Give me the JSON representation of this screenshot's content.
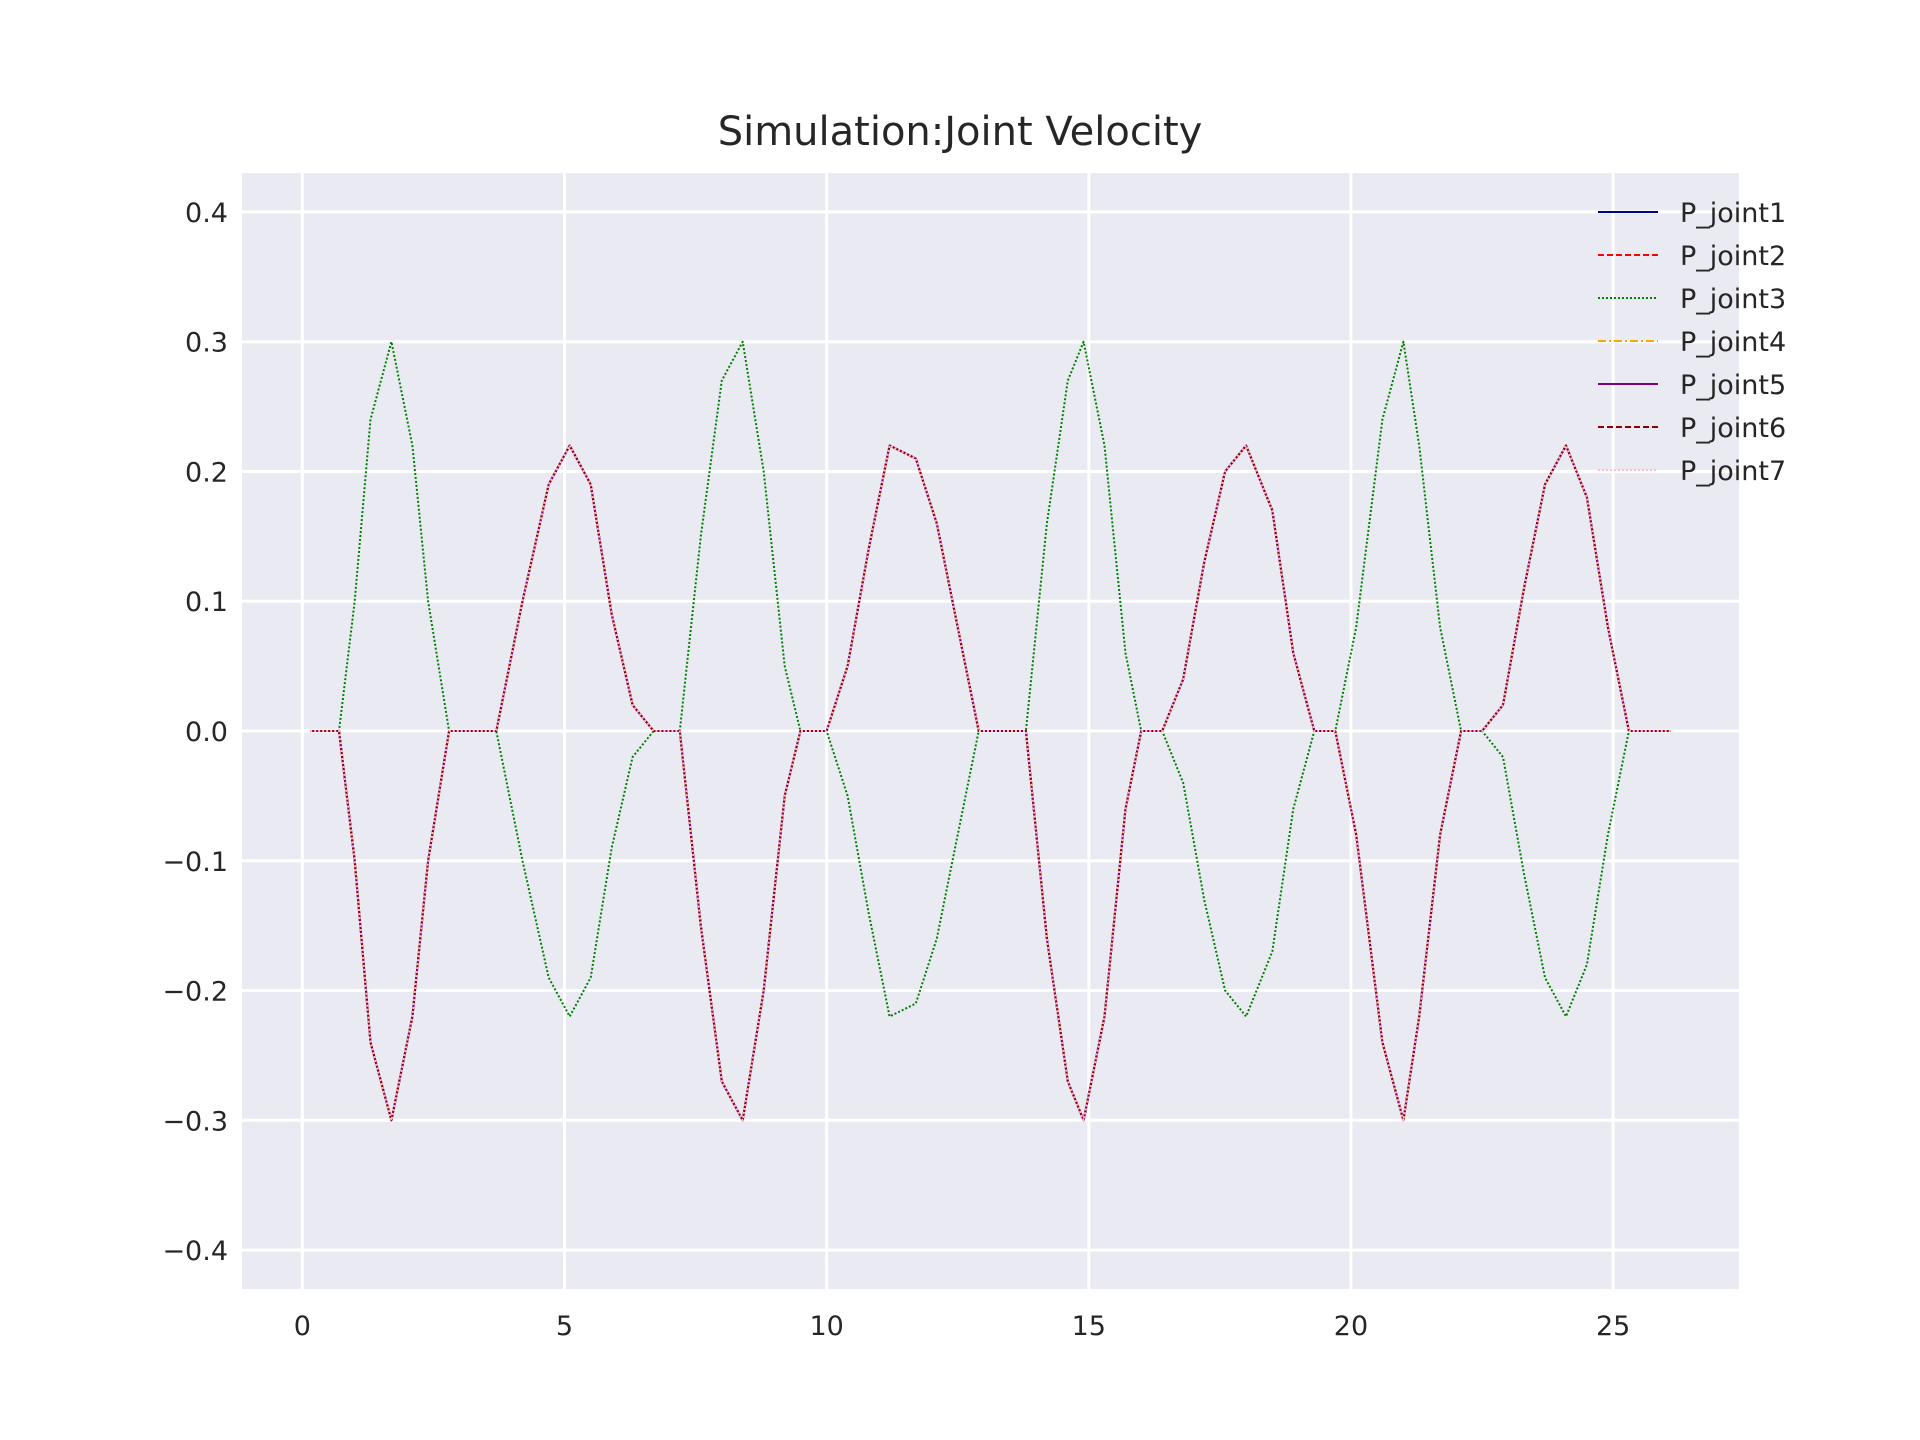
{
  "chart_data": {
    "type": "line",
    "title": "Simulation:Joint Velocity",
    "xlabel": "",
    "ylabel": "",
    "xlim": [
      -1.15,
      27.4
    ],
    "ylim": [
      -0.43,
      0.43
    ],
    "xticks": [
      0,
      5,
      10,
      15,
      20,
      25
    ],
    "yticks": [
      0.4,
      0.3,
      0.2,
      0.1,
      0.0,
      -0.1,
      -0.2,
      -0.3,
      -0.4
    ],
    "ytick_labels": [
      "0.4",
      "0.3",
      "0.2",
      "0.1",
      "0.0",
      "−0.1",
      "−0.2",
      "−0.3",
      "−0.4"
    ],
    "grid": true,
    "legend_position": "top-right",
    "background": "#eaeaf2",
    "grid_color": "#ffffff",
    "x": [
      0.15,
      0.5,
      0.7,
      1.0,
      1.3,
      1.7,
      2.1,
      2.4,
      2.8,
      3.2,
      3.7,
      4.2,
      4.7,
      5.1,
      5.5,
      5.9,
      6.3,
      6.7,
      7.2,
      7.6,
      8.0,
      8.4,
      8.8,
      9.2,
      9.5,
      10.0,
      10.4,
      10.8,
      11.2,
      11.7,
      12.1,
      12.5,
      12.9,
      13.3,
      13.8,
      14.2,
      14.6,
      14.9,
      15.3,
      15.7,
      16.0,
      16.4,
      16.8,
      17.2,
      17.6,
      18.0,
      18.5,
      18.9,
      19.3,
      19.7,
      20.1,
      20.6,
      21.0,
      21.3,
      21.7,
      22.1,
      22.5,
      22.9,
      23.3,
      23.7,
      24.1,
      24.5,
      24.9,
      25.3,
      25.7,
      26.1
    ],
    "series": [
      {
        "name": "P_joint1",
        "color": "#00008b",
        "dash": "solid",
        "values": [
          0.0,
          0.0,
          0.0,
          -0.1,
          -0.24,
          -0.3,
          -0.22,
          -0.1,
          0.0,
          0.0,
          0.0,
          0.1,
          0.19,
          0.22,
          0.19,
          0.09,
          0.02,
          0.0,
          0.0,
          -0.15,
          -0.27,
          -0.3,
          -0.2,
          -0.05,
          0.0,
          0.0,
          0.05,
          0.14,
          0.22,
          0.21,
          0.16,
          0.08,
          0.0,
          0.0,
          0.0,
          -0.16,
          -0.27,
          -0.3,
          -0.22,
          -0.06,
          0.0,
          0.0,
          0.04,
          0.13,
          0.2,
          0.22,
          0.17,
          0.06,
          0.0,
          0.0,
          -0.08,
          -0.24,
          -0.3,
          -0.22,
          -0.08,
          0.0,
          0.0,
          0.02,
          0.11,
          0.19,
          0.22,
          0.18,
          0.08,
          0.0,
          0.0,
          0.0
        ]
      },
      {
        "name": "P_joint2",
        "color": "#ff0000",
        "dash": "6,3",
        "values": [
          0.0,
          0.0,
          0.0,
          -0.1,
          -0.24,
          -0.3,
          -0.22,
          -0.1,
          0.0,
          0.0,
          0.0,
          0.1,
          0.19,
          0.22,
          0.19,
          0.09,
          0.02,
          0.0,
          0.0,
          -0.15,
          -0.27,
          -0.3,
          -0.2,
          -0.05,
          0.0,
          0.0,
          0.05,
          0.14,
          0.22,
          0.21,
          0.16,
          0.08,
          0.0,
          0.0,
          0.0,
          -0.16,
          -0.27,
          -0.3,
          -0.22,
          -0.06,
          0.0,
          0.0,
          0.04,
          0.13,
          0.2,
          0.22,
          0.17,
          0.06,
          0.0,
          0.0,
          -0.08,
          -0.24,
          -0.3,
          -0.22,
          -0.08,
          0.0,
          0.0,
          0.02,
          0.11,
          0.19,
          0.22,
          0.18,
          0.08,
          0.0,
          0.0,
          0.0
        ]
      },
      {
        "name": "P_joint3",
        "color": "#008000",
        "dash": "2,2",
        "values": [
          0.0,
          0.0,
          0.0,
          0.1,
          0.24,
          0.3,
          0.22,
          0.1,
          0.0,
          0.0,
          0.0,
          -0.1,
          -0.19,
          -0.22,
          -0.19,
          -0.09,
          -0.02,
          0.0,
          0.0,
          0.15,
          0.27,
          0.3,
          0.2,
          0.05,
          0.0,
          0.0,
          -0.05,
          -0.14,
          -0.22,
          -0.21,
          -0.16,
          -0.08,
          0.0,
          0.0,
          0.0,
          0.16,
          0.27,
          0.3,
          0.22,
          0.06,
          0.0,
          0.0,
          -0.04,
          -0.13,
          -0.2,
          -0.22,
          -0.17,
          -0.06,
          0.0,
          0.0,
          0.08,
          0.24,
          0.3,
          0.22,
          0.08,
          0.0,
          0.0,
          -0.02,
          -0.11,
          -0.19,
          -0.22,
          -0.18,
          -0.08,
          0.0,
          0.0,
          0.0
        ]
      },
      {
        "name": "P_joint4",
        "color": "#ffa500",
        "dash": "8,3,2,3",
        "values": [
          0.0,
          0.0,
          0.0,
          -0.1,
          -0.24,
          -0.3,
          -0.22,
          -0.1,
          0.0,
          0.0,
          0.0,
          0.1,
          0.19,
          0.22,
          0.19,
          0.09,
          0.02,
          0.0,
          0.0,
          -0.15,
          -0.27,
          -0.3,
          -0.2,
          -0.05,
          0.0,
          0.0,
          0.05,
          0.14,
          0.22,
          0.21,
          0.16,
          0.08,
          0.0,
          0.0,
          0.0,
          -0.16,
          -0.27,
          -0.3,
          -0.22,
          -0.06,
          0.0,
          0.0,
          0.04,
          0.13,
          0.2,
          0.22,
          0.17,
          0.06,
          0.0,
          0.0,
          -0.08,
          -0.24,
          -0.3,
          -0.22,
          -0.08,
          0.0,
          0.0,
          0.02,
          0.11,
          0.19,
          0.22,
          0.18,
          0.08,
          0.0,
          0.0,
          0.0
        ]
      },
      {
        "name": "P_joint5",
        "color": "#800080",
        "dash": "solid",
        "values": [
          0.0,
          0.0,
          0.0,
          -0.1,
          -0.24,
          -0.3,
          -0.22,
          -0.1,
          0.0,
          0.0,
          0.0,
          0.1,
          0.19,
          0.22,
          0.19,
          0.09,
          0.02,
          0.0,
          0.0,
          -0.15,
          -0.27,
          -0.3,
          -0.2,
          -0.05,
          0.0,
          0.0,
          0.05,
          0.14,
          0.22,
          0.21,
          0.16,
          0.08,
          0.0,
          0.0,
          0.0,
          -0.16,
          -0.27,
          -0.3,
          -0.22,
          -0.06,
          0.0,
          0.0,
          0.04,
          0.13,
          0.2,
          0.22,
          0.17,
          0.06,
          0.0,
          0.0,
          -0.08,
          -0.24,
          -0.3,
          -0.22,
          -0.08,
          0.0,
          0.0,
          0.02,
          0.11,
          0.19,
          0.22,
          0.18,
          0.08,
          0.0,
          0.0,
          0.0
        ]
      },
      {
        "name": "P_joint6",
        "color": "#8b0000",
        "dash": "6,3",
        "values": [
          0.0,
          0.0,
          0.0,
          -0.1,
          -0.24,
          -0.3,
          -0.22,
          -0.1,
          0.0,
          0.0,
          0.0,
          0.1,
          0.19,
          0.22,
          0.19,
          0.09,
          0.02,
          0.0,
          0.0,
          -0.15,
          -0.27,
          -0.3,
          -0.2,
          -0.05,
          0.0,
          0.0,
          0.05,
          0.14,
          0.22,
          0.21,
          0.16,
          0.08,
          0.0,
          0.0,
          0.0,
          -0.16,
          -0.27,
          -0.3,
          -0.22,
          -0.06,
          0.0,
          0.0,
          0.04,
          0.13,
          0.2,
          0.22,
          0.17,
          0.06,
          0.0,
          0.0,
          -0.08,
          -0.24,
          -0.3,
          -0.22,
          -0.08,
          0.0,
          0.0,
          0.02,
          0.11,
          0.19,
          0.22,
          0.18,
          0.08,
          0.0,
          0.0,
          0.0
        ]
      },
      {
        "name": "P_joint7",
        "color": "#ffc0cb",
        "dash": "2,2",
        "values": [
          0.0,
          0.0,
          0.0,
          -0.1,
          -0.24,
          -0.3,
          -0.22,
          -0.1,
          0.0,
          0.0,
          0.0,
          0.1,
          0.19,
          0.22,
          0.19,
          0.09,
          0.02,
          0.0,
          0.0,
          -0.15,
          -0.27,
          -0.3,
          -0.2,
          -0.05,
          0.0,
          0.0,
          0.05,
          0.14,
          0.22,
          0.21,
          0.16,
          0.08,
          0.0,
          0.0,
          0.0,
          -0.16,
          -0.27,
          -0.3,
          -0.22,
          -0.06,
          0.0,
          0.0,
          0.04,
          0.13,
          0.2,
          0.22,
          0.17,
          0.06,
          0.0,
          0.0,
          -0.08,
          -0.24,
          -0.3,
          -0.22,
          -0.08,
          0.0,
          0.0,
          0.02,
          0.11,
          0.19,
          0.22,
          0.18,
          0.08,
          0.0,
          0.0,
          0.0
        ]
      }
    ]
  }
}
